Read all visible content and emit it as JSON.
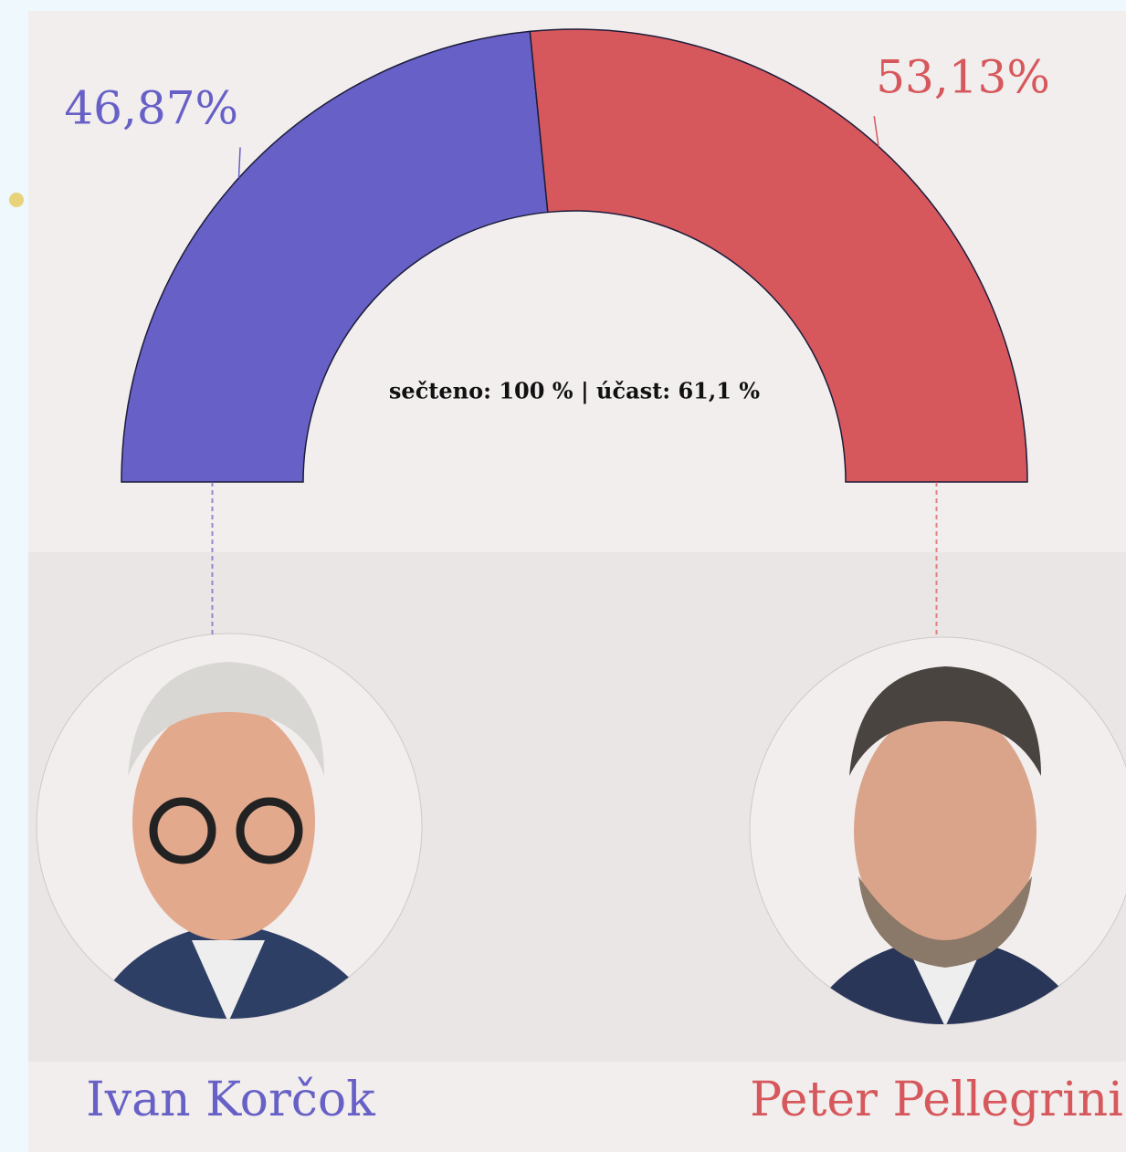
{
  "chart_data": {
    "type": "half-donut",
    "annotation": "sečteno: 100 % | účast: 61,1 %",
    "categories": [
      "Ivan Korčok",
      "Peter Pellegrini"
    ],
    "values": [
      46.87,
      53.13
    ],
    "value_labels": [
      "46,87%",
      "53,13%"
    ],
    "colors": [
      "#6760c6",
      "#d6585c"
    ]
  }
}
